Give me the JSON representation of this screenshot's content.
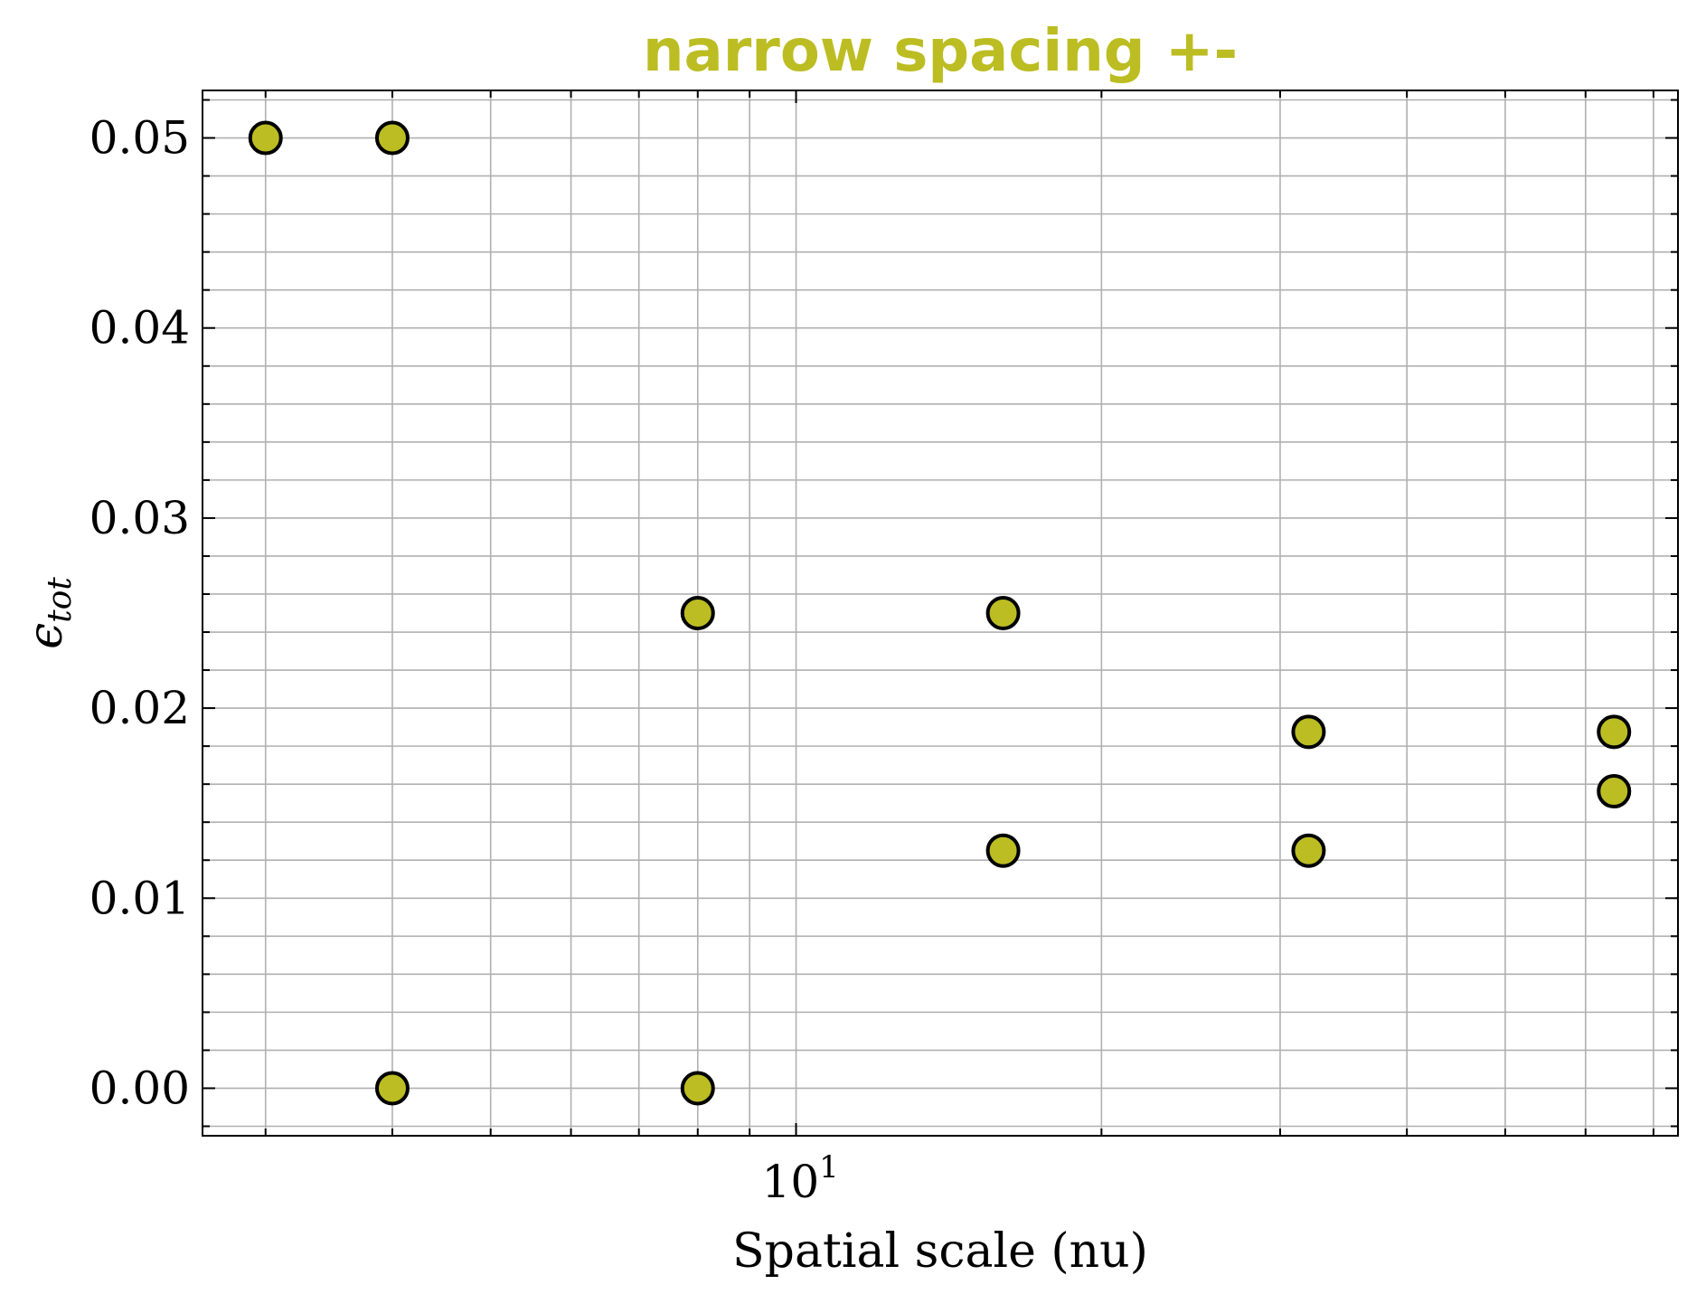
{
  "chart_data": {
    "type": "scatter",
    "title": "narrow spacing +-",
    "xlabel": "Spatial scale (nu)",
    "ylabel": "ϵ",
    "ylabel_subscript": "tot",
    "x_scale": "log",
    "xlim": [
      2.6,
      74
    ],
    "ylim": [
      -0.0025,
      0.0525
    ],
    "x_tick_label": "10",
    "x_tick_exponent": "1",
    "y_ticks": [
      0.0,
      0.01,
      0.02,
      0.03,
      0.04,
      0.05
    ],
    "y_tick_labels": [
      "0.00",
      "0.01",
      "0.02",
      "0.03",
      "0.04",
      "0.05"
    ],
    "grid": true,
    "series": [
      {
        "color": "#bcbd22",
        "edge_color": "#000000",
        "points": [
          {
            "x": 3,
            "y": 0.05
          },
          {
            "x": 4,
            "y": 0.05
          },
          {
            "x": 4,
            "y": 0.0
          },
          {
            "x": 8,
            "y": 0.025
          },
          {
            "x": 8,
            "y": 0.0
          },
          {
            "x": 16,
            "y": 0.025
          },
          {
            "x": 16,
            "y": 0.0125
          },
          {
            "x": 32,
            "y": 0.01875
          },
          {
            "x": 32,
            "y": 0.0125
          },
          {
            "x": 64,
            "y": 0.01875
          },
          {
            "x": 64,
            "y": 0.015625
          }
        ]
      }
    ]
  },
  "colors": {
    "title": "#bcbd22",
    "grid": "#b0b0b0",
    "marker_face": "#bcbd22",
    "marker_edge": "#000000"
  }
}
